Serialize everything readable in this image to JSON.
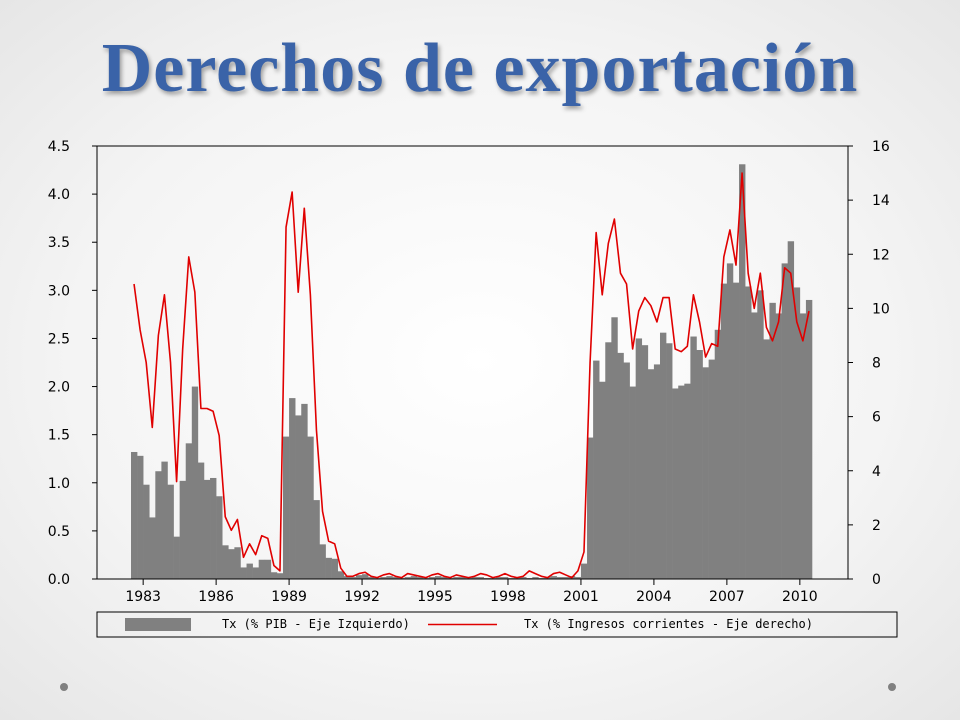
{
  "slide": {
    "title": "Derechos de exportación"
  },
  "chart_data": {
    "type": "bar",
    "title": "",
    "x_ticks": [
      "1983",
      "1986",
      "1989",
      "1992",
      "1995",
      "1998",
      "2001",
      "2004",
      "2007",
      "2010"
    ],
    "y_left": {
      "min": 0,
      "max": 4.5,
      "ticks": [
        "0.0",
        "0.5",
        "1.0",
        "1.5",
        "2.0",
        "2.5",
        "3.0",
        "3.5",
        "4.0",
        "4.5"
      ]
    },
    "y_right": {
      "min": 0,
      "max": 16,
      "ticks": [
        "0",
        "2",
        "4",
        "6",
        "8",
        "10",
        "12",
        "14",
        "16"
      ]
    },
    "series": [
      {
        "name": "Tx (% PIB - Eje Izquierdo)",
        "kind": "bar",
        "axis": "left",
        "color": "#808080",
        "start": "1982Q3",
        "frequency": "quarterly",
        "values": [
          1.32,
          1.28,
          0.98,
          0.64,
          1.12,
          1.22,
          0.98,
          0.44,
          1.02,
          1.41,
          2.0,
          1.21,
          1.03,
          1.05,
          0.86,
          0.35,
          0.31,
          0.33,
          0.12,
          0.16,
          0.12,
          0.2,
          0.2,
          0.07,
          0.06,
          1.48,
          1.88,
          1.7,
          1.82,
          1.48,
          0.82,
          0.36,
          0.22,
          0.21,
          0.08,
          0.03,
          0.02,
          0.04,
          0.05,
          0.02,
          0.01,
          0.02,
          0.03,
          0.02,
          0.01,
          0.02,
          0.03,
          0.02,
          0.01,
          0.02,
          0.03,
          0.02,
          0.01,
          0.02,
          0.02,
          0.01,
          0.02,
          0.02,
          0.01,
          0.01,
          0.02,
          0.02,
          0.01,
          0.02,
          0.02,
          0.01,
          0.02,
          0.01,
          0.02,
          0.03,
          0.02,
          0.02,
          0.03,
          0.02,
          0.16,
          1.47,
          2.27,
          2.05,
          2.46,
          2.72,
          2.35,
          2.25,
          2.0,
          2.5,
          2.43,
          2.18,
          2.23,
          2.56,
          2.45,
          1.98,
          2.01,
          2.03,
          2.52,
          2.38,
          2.2,
          2.28,
          2.59,
          3.07,
          3.28,
          3.08,
          4.31,
          3.04,
          2.77,
          3.0,
          2.49,
          2.87,
          2.76,
          3.28,
          3.51,
          3.03,
          2.76,
          2.9
        ]
      },
      {
        "name": "Tx (% Ingresos corrientes - Eje derecho)",
        "kind": "line",
        "axis": "right",
        "color": "#e00000",
        "start": "1982Q3",
        "frequency": "quarterly",
        "values": [
          10.9,
          9.2,
          8.0,
          5.6,
          9.0,
          10.5,
          8.0,
          3.6,
          8.5,
          11.9,
          10.6,
          6.3,
          6.3,
          6.2,
          5.3,
          2.3,
          1.8,
          2.2,
          0.8,
          1.3,
          0.9,
          1.6,
          1.5,
          0.5,
          0.3,
          13.0,
          14.3,
          10.6,
          13.7,
          10.5,
          5.5,
          2.5,
          1.4,
          1.3,
          0.4,
          0.1,
          0.1,
          0.2,
          0.25,
          0.1,
          0.05,
          0.15,
          0.2,
          0.1,
          0.05,
          0.2,
          0.15,
          0.1,
          0.05,
          0.15,
          0.2,
          0.1,
          0.05,
          0.15,
          0.1,
          0.05,
          0.1,
          0.2,
          0.15,
          0.05,
          0.1,
          0.2,
          0.1,
          0.05,
          0.1,
          0.3,
          0.2,
          0.1,
          0.05,
          0.2,
          0.25,
          0.15,
          0.05,
          0.3,
          1.0,
          8.0,
          12.8,
          10.5,
          12.4,
          13.3,
          11.3,
          10.9,
          8.5,
          9.9,
          10.4,
          10.1,
          9.5,
          10.4,
          10.4,
          8.5,
          8.4,
          8.6,
          10.5,
          9.5,
          8.2,
          8.7,
          8.6,
          11.9,
          12.9,
          11.6,
          15.0,
          11.3,
          10.0,
          11.3,
          9.3,
          8.8,
          9.5,
          11.5,
          11.3,
          9.5,
          8.8,
          9.9
        ]
      }
    ],
    "grid": false,
    "legend_position": "bottom"
  }
}
